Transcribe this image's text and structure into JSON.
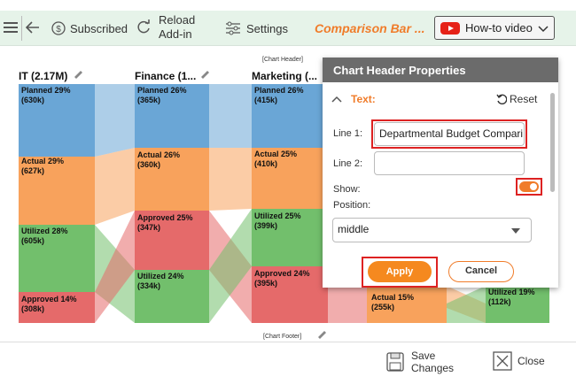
{
  "toolbar": {
    "subscribed_label": "Subscribed",
    "reload_label_line1": "Reload",
    "reload_label_line2": "Add-in",
    "settings_label": "Settings",
    "title": "Comparison Bar ...",
    "howto_label": "How-to video"
  },
  "chart": {
    "header_placeholder": "[Chart Header]",
    "footer_placeholder": "[Chart Footer]",
    "columns": [
      {
        "title": "IT (2.17M)",
        "segments": [
          {
            "label": "Planned 29%",
            "value": "(630k)"
          },
          {
            "label": "Actual 29%",
            "value": "(627k)"
          },
          {
            "label": "Utilized 28%",
            "value": "(605k)"
          },
          {
            "label": "Approved 14%",
            "value": "(308k)"
          }
        ]
      },
      {
        "title": "Finance (1...",
        "segments": [
          {
            "label": "Planned 26%",
            "value": "(365k)"
          },
          {
            "label": "Actual 26%",
            "value": "(360k)"
          },
          {
            "label": "Approved 25%",
            "value": "(347k)"
          },
          {
            "label": "Utilized 24%",
            "value": "(334k)"
          }
        ]
      },
      {
        "title": "Marketing (...",
        "segments": [
          {
            "label": "Planned 26%",
            "value": "(415k)"
          },
          {
            "label": "Actual 25%",
            "value": "(410k)"
          },
          {
            "label": "Utilized 25%",
            "value": "(399k)"
          },
          {
            "label": "Approved 24%",
            "value": "(395k)"
          }
        ]
      },
      {
        "title": "",
        "segments": [
          {
            "label": "Actual 15%",
            "value": "(255k)"
          }
        ]
      },
      {
        "title": "",
        "segments": [
          {
            "label": "Utilized 19%",
            "value": "(112k)"
          }
        ]
      }
    ],
    "colors": {
      "planned": "#6aa6d6",
      "actual": "#f8a25c",
      "utilized": "#72bf6c",
      "approved": "#e56a6a"
    }
  },
  "panel": {
    "title": "Chart Header Properties",
    "section_label": "Text:",
    "reset_label": "Reset",
    "line1_label": "Line 1:",
    "line1_value": "Departmental Budget Compari",
    "line2_label": "Line 2:",
    "line2_value": "",
    "show_label": "Show:",
    "position_label": "Position:",
    "position_value": "middle",
    "apply_label": "Apply",
    "cancel_label": "Cancel"
  },
  "footer": {
    "save_line1": "Save",
    "save_line2": "Changes",
    "close_label": "Close"
  }
}
